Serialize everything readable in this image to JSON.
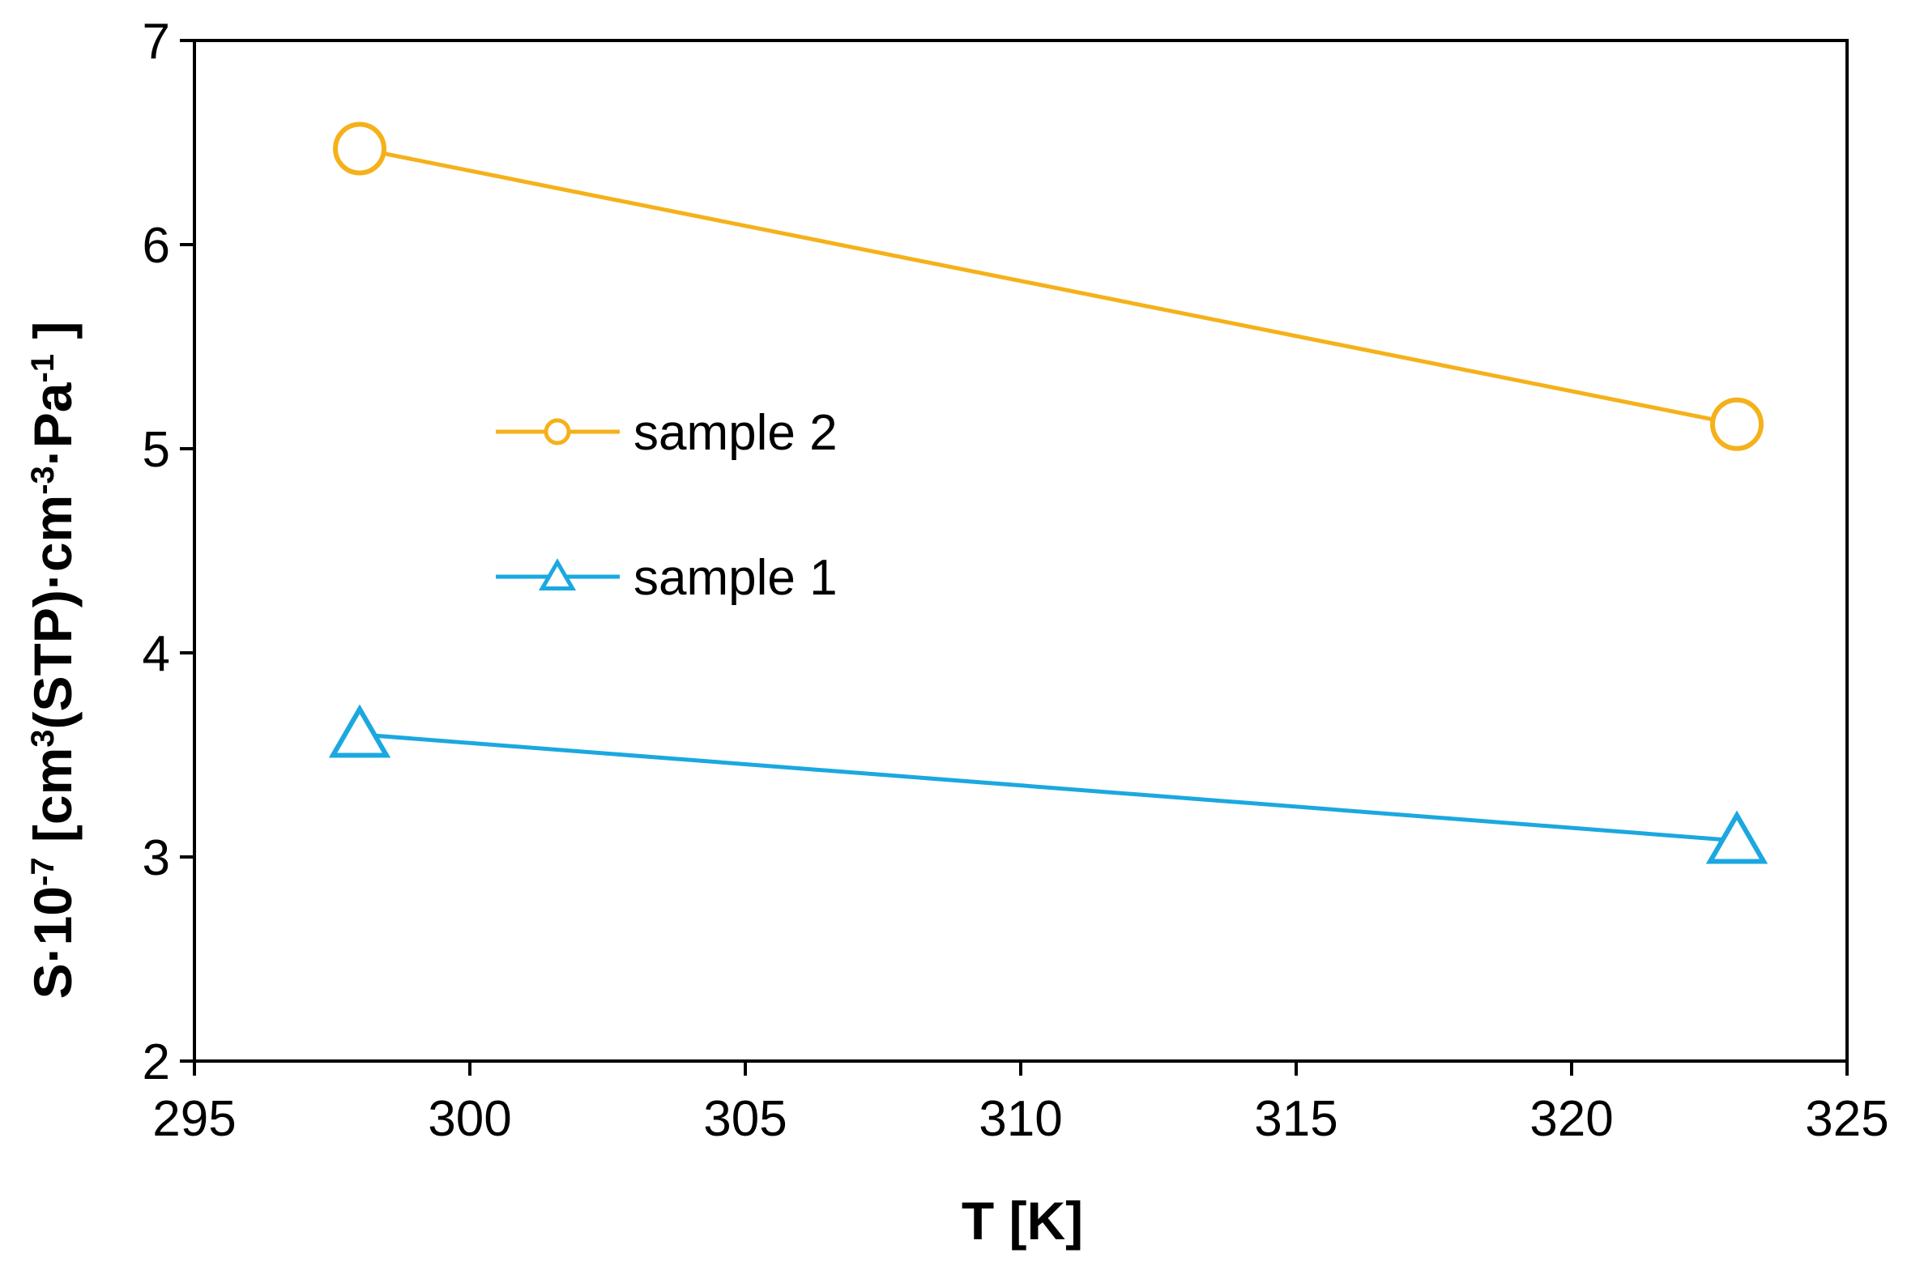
{
  "chart_data": {
    "type": "line",
    "title": "",
    "xlabel": "T [K]",
    "ylabel": {
      "prefix": "S·10",
      "sup_exp": "-7",
      "mid1": " [cm",
      "sup_cm3": "3",
      "mid2": "(STP)·cm",
      "sup_neg3": "-3",
      "mid3": "·Pa",
      "sup_neg1": "-1",
      "suffix": " ]"
    },
    "xlim": [
      295,
      325
    ],
    "ylim": [
      2,
      7
    ],
    "xticks": [
      295,
      300,
      305,
      310,
      315,
      320,
      325
    ],
    "yticks": [
      2,
      3,
      4,
      5,
      6,
      7
    ],
    "grid": false,
    "legend_position": "center-left",
    "series": [
      {
        "name": "sample 2",
        "marker": "circle",
        "color": "#F5B11B",
        "x": [
          298,
          323
        ],
        "y": [
          6.47,
          5.12
        ]
      },
      {
        "name": "sample 1",
        "marker": "triangle",
        "color": "#1BA8E0",
        "x": [
          298,
          323
        ],
        "y": [
          3.6,
          3.08
        ]
      }
    ]
  }
}
